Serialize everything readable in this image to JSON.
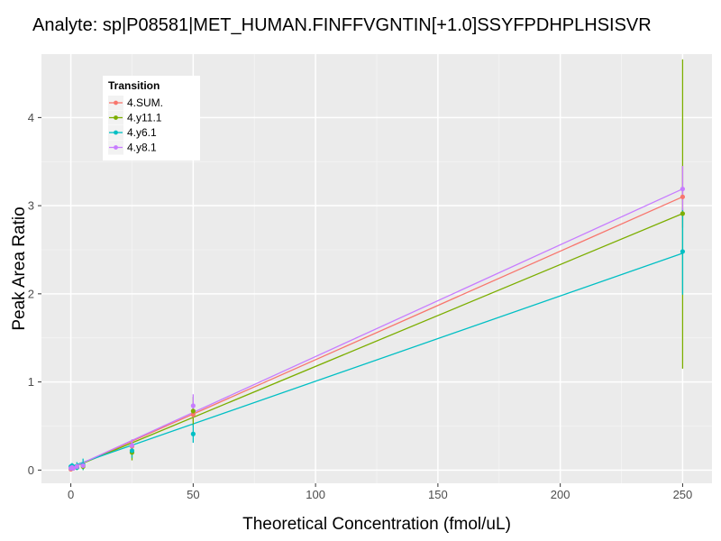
{
  "chart_data": {
    "type": "line",
    "title": "Analyte: sp|P08581|MET_HUMAN.FINFFVGNTIN[+1.0]SSYFPDHPLHSISVR",
    "xlabel": "Theoretical Concentration (fmol/uL)",
    "ylabel": "Peak Area Ratio",
    "xlim": [
      -12,
      262
    ],
    "ylim": [
      -0.15,
      4.72
    ],
    "xticks": [
      0,
      50,
      100,
      150,
      200,
      250
    ],
    "yticks": [
      0,
      1,
      2,
      3,
      4
    ],
    "grid": true,
    "legend": {
      "title": "Transition",
      "position": "top-left inside"
    },
    "series": [
      {
        "name": "4.SUM.",
        "color": "#F8766D",
        "x": [
          0,
          0.5,
          1,
          2.5,
          5,
          25,
          50,
          250
        ],
        "y": [
          0.01,
          0.02,
          0.02,
          0.03,
          0.05,
          0.27,
          0.63,
          3.1
        ],
        "err_low": [
          0.0,
          0.0,
          0.0,
          0.01,
          0.03,
          0.2,
          0.55,
          2.75
        ],
        "err_high": [
          0.03,
          0.04,
          0.04,
          0.06,
          0.09,
          0.32,
          0.7,
          3.45
        ],
        "fit": {
          "x": [
            0,
            250
          ],
          "y": [
            0.02,
            3.1
          ]
        }
      },
      {
        "name": "4.y11.1",
        "color": "#7CAE00",
        "x": [
          0,
          0.5,
          1,
          2.5,
          5,
          25,
          50,
          250
        ],
        "y": [
          0.02,
          0.02,
          0.03,
          0.03,
          0.04,
          0.2,
          0.67,
          2.91
        ],
        "err_low": [
          0.0,
          0.0,
          0.0,
          0.0,
          0.0,
          0.11,
          0.5,
          1.15
        ],
        "err_high": [
          0.05,
          0.05,
          0.06,
          0.08,
          0.1,
          0.3,
          0.83,
          4.66
        ],
        "fit": {
          "x": [
            0,
            250
          ],
          "y": [
            0.02,
            2.91
          ]
        }
      },
      {
        "name": "4.y6.1",
        "color": "#00BFC4",
        "x": [
          0,
          0.5,
          1,
          2.5,
          5,
          25,
          50,
          250
        ],
        "y": [
          0.04,
          0.05,
          0.03,
          0.03,
          0.06,
          0.22,
          0.41,
          2.48
        ],
        "err_low": [
          0.0,
          0.0,
          0.0,
          0.0,
          0.0,
          0.14,
          0.31,
          1.99
        ],
        "err_high": [
          0.07,
          0.08,
          0.06,
          0.09,
          0.13,
          0.3,
          0.52,
          2.97
        ],
        "fit": {
          "x": [
            0,
            250
          ],
          "y": [
            0.04,
            2.46
          ]
        }
      },
      {
        "name": "4.y8.1",
        "color": "#C77CFF",
        "x": [
          0,
          0.5,
          1,
          2.5,
          5,
          25,
          50,
          250
        ],
        "y": [
          0.02,
          0.03,
          0.02,
          0.04,
          0.05,
          0.28,
          0.73,
          3.19
        ],
        "err_low": [
          0.0,
          0.0,
          0.0,
          0.01,
          0.02,
          0.2,
          0.6,
          2.95
        ],
        "err_high": [
          0.04,
          0.05,
          0.04,
          0.07,
          0.09,
          0.35,
          0.86,
          3.45
        ],
        "fit": {
          "x": [
            0,
            250
          ],
          "y": [
            0.02,
            3.19
          ]
        }
      }
    ]
  }
}
